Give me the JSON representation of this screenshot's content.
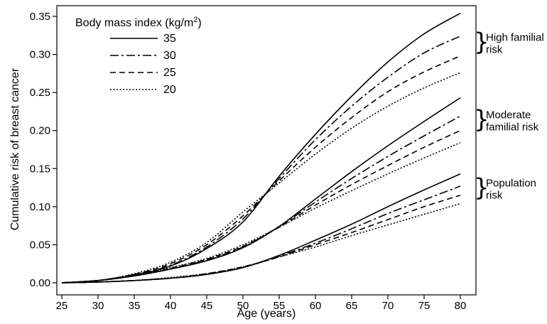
{
  "chart_data": {
    "type": "line",
    "xlabel": "Age (years)",
    "ylabel": "Cumulative risk of breast cancer",
    "xlim": [
      25,
      80
    ],
    "ylim": [
      0,
      0.35
    ],
    "xticks": [
      25,
      30,
      35,
      40,
      45,
      50,
      55,
      60,
      65,
      70,
      75,
      80
    ],
    "yticks": [
      "0.00",
      "0.05",
      "0.10",
      "0.15",
      "0.20",
      "0.25",
      "0.30",
      "0.35"
    ],
    "grid": false,
    "legend": {
      "title_main": "Body mass index (kg/m",
      "title_sup": "2",
      "title_close": ")",
      "position": "top-left",
      "entries": [
        {
          "label": "35",
          "style": "solid"
        },
        {
          "label": "30",
          "style": "dashdot"
        },
        {
          "label": "25",
          "style": "dashed"
        },
        {
          "label": "20",
          "style": "dotted"
        }
      ]
    },
    "x": [
      25,
      30,
      35,
      40,
      45,
      50,
      55,
      60,
      65,
      70,
      75,
      80
    ],
    "groups": [
      {
        "label_lines": [
          "High familial",
          "risk"
        ],
        "series": [
          {
            "bmi": "35",
            "style": "solid",
            "values": [
              0,
              0.003,
              0.01,
              0.022,
              0.045,
              0.08,
              0.14,
              0.195,
              0.245,
              0.29,
              0.327,
              0.354
            ]
          },
          {
            "bmi": "30",
            "style": "dashdot",
            "values": [
              0,
              0.003,
              0.011,
              0.023,
              0.047,
              0.084,
              0.137,
              0.188,
              0.232,
              0.27,
              0.302,
              0.324
            ]
          },
          {
            "bmi": "25",
            "style": "dashed",
            "values": [
              0,
              0.003,
              0.011,
              0.025,
              0.05,
              0.088,
              0.134,
              0.178,
              0.217,
              0.251,
              0.277,
              0.298
            ]
          },
          {
            "bmi": "20",
            "style": "dotted",
            "values": [
              0,
              0.003,
              0.012,
              0.027,
              0.053,
              0.093,
              0.131,
              0.169,
              0.203,
              0.232,
              0.256,
              0.276
            ]
          }
        ]
      },
      {
        "label_lines": [
          "Moderate",
          "familial risk"
        ],
        "series": [
          {
            "bmi": "35",
            "style": "solid",
            "values": [
              0,
              0.003,
              0.009,
              0.018,
              0.029,
              0.046,
              0.074,
              0.11,
              0.146,
              0.18,
              0.212,
              0.243
            ]
          },
          {
            "bmi": "30",
            "style": "dashdot",
            "values": [
              0,
              0.003,
              0.009,
              0.018,
              0.03,
              0.047,
              0.074,
              0.106,
              0.137,
              0.166,
              0.193,
              0.219
            ]
          },
          {
            "bmi": "25",
            "style": "dashed",
            "values": [
              0,
              0.003,
              0.009,
              0.019,
              0.031,
              0.048,
              0.073,
              0.102,
              0.129,
              0.154,
              0.178,
              0.2
            ]
          },
          {
            "bmi": "20",
            "style": "dotted",
            "values": [
              0,
              0.003,
              0.01,
              0.02,
              0.032,
              0.05,
              0.073,
              0.098,
              0.121,
              0.143,
              0.164,
              0.184
            ]
          }
        ]
      },
      {
        "label_lines": [
          "Population",
          "risk"
        ],
        "series": [
          {
            "bmi": "35",
            "style": "solid",
            "values": [
              0,
              0.001,
              0.003,
              0.006,
              0.011,
              0.02,
              0.036,
              0.056,
              0.077,
              0.1,
              0.122,
              0.143
            ]
          },
          {
            "bmi": "30",
            "style": "dashdot",
            "values": [
              0,
              0.001,
              0.003,
              0.006,
              0.011,
              0.02,
              0.035,
              0.052,
              0.071,
              0.091,
              0.109,
              0.127
            ]
          },
          {
            "bmi": "25",
            "style": "dashed",
            "values": [
              0,
              0.001,
              0.003,
              0.006,
              0.012,
              0.021,
              0.034,
              0.05,
              0.066,
              0.083,
              0.1,
              0.115
            ]
          },
          {
            "bmi": "20",
            "style": "dotted",
            "values": [
              0,
              0.001,
              0.003,
              0.007,
              0.012,
              0.021,
              0.034,
              0.047,
              0.062,
              0.076,
              0.09,
              0.104
            ]
          }
        ]
      }
    ]
  }
}
